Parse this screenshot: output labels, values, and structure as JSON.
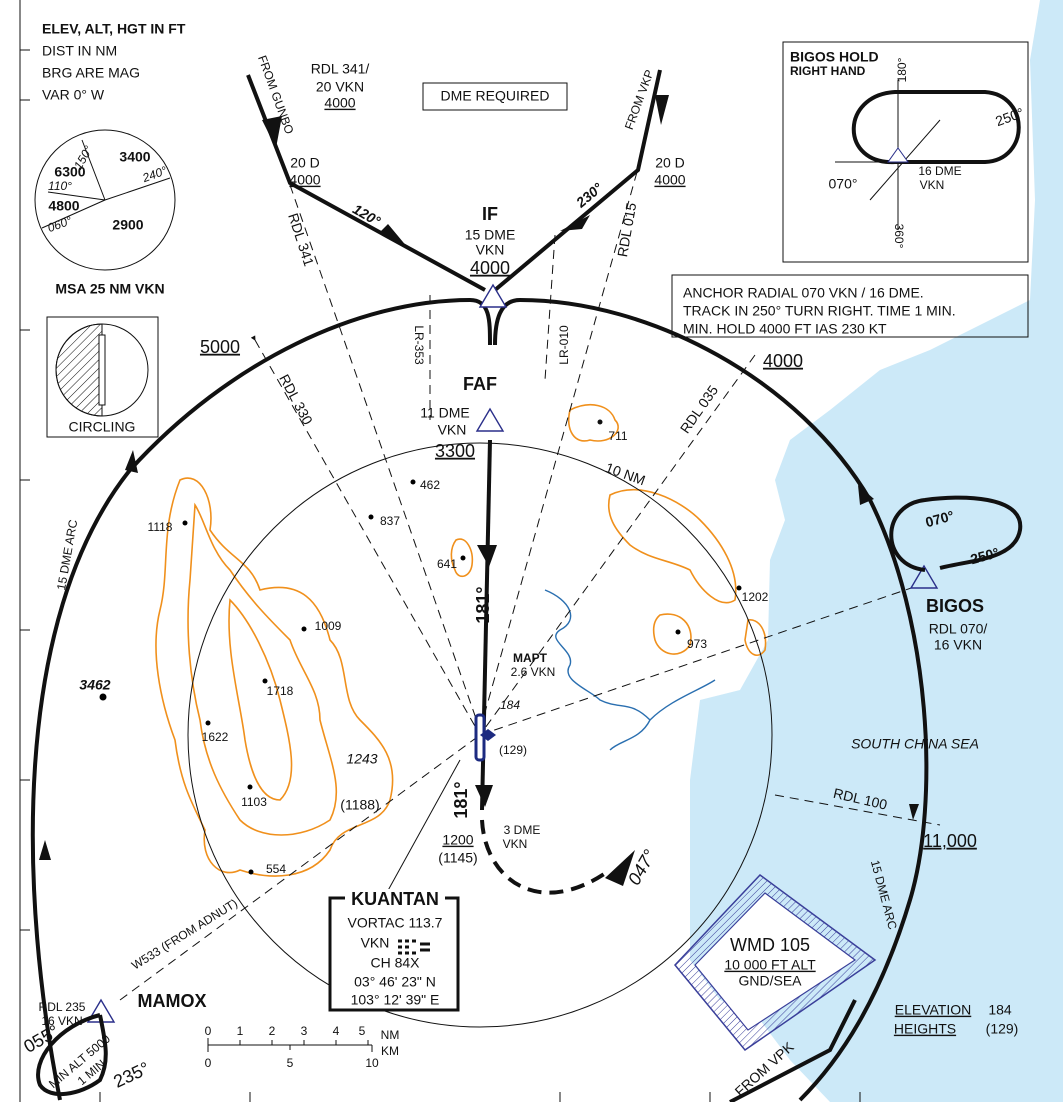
{
  "notes": [
    "ELEV, ALT, HGT  IN FT",
    "DIST IN NM",
    "BRG ARE MAG",
    "VAR 0° W"
  ],
  "msa": {
    "sectors": [
      "3400",
      "6300",
      "4800",
      "2900"
    ],
    "bearings": [
      "150°",
      "110°",
      "060°",
      "240°"
    ],
    "label": "MSA 25 NM VKN"
  },
  "circling": "CIRCLING",
  "gunbo": {
    "from": "FROM GUNBO",
    "radial": "RDL 341/",
    "dist": "20 VKN",
    "alt": "4000",
    "fix_dist": "20 D",
    "fix_alt": "4000",
    "track": "120°",
    "rdl": "RDL 341"
  },
  "dme_required": "DME REQUIRED",
  "vkp": {
    "from": "FROM VKP",
    "fix_dist": "20 D",
    "fix_alt": "4000",
    "track": "230°",
    "rdl": "RDL 015"
  },
  "if_fix": {
    "name": "IF",
    "dist": "15 DME",
    "nav": "VKN",
    "alt": "4000"
  },
  "lead_radials": [
    "LR-353",
    "LR-010"
  ],
  "sector_alt_nw": "5000",
  "rdl_330": "RDL 330",
  "faf": {
    "name": "FAF",
    "dist": "11 DME",
    "nav": "VKN",
    "alt": "3300"
  },
  "rdl_035": "RDL 035",
  "sector_alt_ne": "4000",
  "spots": {
    "s711": "711",
    "s462": "462",
    "s837": "837",
    "s1118": "1118",
    "s641": "641",
    "s1009": "1009",
    "s1202": "1202",
    "s973": "973",
    "s1718": "1718",
    "s3462": "3462",
    "s1622": "1622",
    "s1103": "1103",
    "s554": "554"
  },
  "ring": "10 NM",
  "final_track": [
    "181°",
    "181°"
  ],
  "mapt": {
    "name": "MAPT",
    "dist": "2.6 VKN"
  },
  "vor_elev": "184",
  "vor_height": "(129)",
  "obstacle": {
    "elev": "1243",
    "height": "(1188)"
  },
  "step": {
    "dist": "3 DME",
    "nav": "VKN",
    "alt": "1200",
    "height": "(1145)"
  },
  "missed_track": "047°",
  "kuantan": {
    "name": "KUANTAN",
    "freq": "VORTAC 113.7",
    "ident": "VKN",
    "channel": "CH 84X",
    "lat": "03° 46' 23\" N",
    "lon": "103° 12' 39\" E"
  },
  "airway": "W533 (FROM ADNUT)",
  "arc_labels": [
    "15 DME ARC",
    "15 DME ARC"
  ],
  "mamox": {
    "radial": "RDL 235",
    "dist": "16 VKN",
    "name": "MAMOX",
    "in": "055°",
    "out": "235°",
    "min_alt": "MIN ALT 5000",
    "time": "1 MIN"
  },
  "scale": {
    "nm": [
      "0",
      "1",
      "2",
      "3",
      "4",
      "5"
    ],
    "nm_unit": "NM",
    "km": [
      "0",
      "5",
      "10"
    ],
    "km_unit": "KM"
  },
  "from_vpk": "FROM VPK",
  "danger_area": {
    "name": "WMD 105",
    "upper": "10 000 FT ALT",
    "lower": "GND/SEA"
  },
  "legend": {
    "elev_label": "ELEVATION",
    "elev": "184",
    "hgt_label": "HEIGHTS",
    "hgt": "(129)"
  },
  "sea": "SOUTH CHINA SEA",
  "rdl_100": "RDL 100",
  "sector_alt_e": "11,000",
  "bigos": {
    "name": "BIGOS",
    "radial": "RDL 070/",
    "dist": "16 VKN",
    "out": "070°",
    "in": "250°"
  },
  "hold_box": {
    "title": "BIGOS HOLD",
    "sub": "RIGHT HAND",
    "b180": "180°",
    "b250": "250°",
    "b070": "070°",
    "b360": "360°",
    "dist": "16 DME",
    "nav": "VKN"
  },
  "instructions": [
    "ANCHOR RADIAL 070 VKN / 16 DME.",
    "TRACK IN 250° TURN RIGHT. TIME 1 MIN.",
    "MIN. HOLD 4000 FT IAS 230 KT"
  ]
}
